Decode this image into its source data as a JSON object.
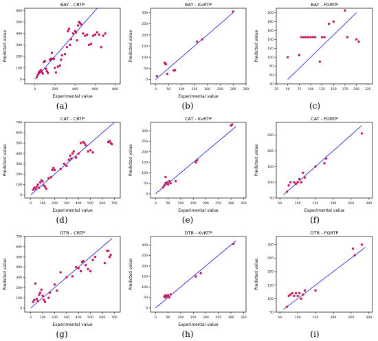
{
  "chart_data": [
    {
      "type": "scatter",
      "caption": "(a)",
      "title": "BAY - CRTP",
      "xlabel": "Experimental value",
      "ylabel": "Predicted value",
      "xlim": [
        -100,
        850
      ],
      "ylim": [
        -40,
        620
      ],
      "xticks": [
        0,
        200,
        400,
        600,
        800
      ],
      "yticks": [
        0,
        100,
        200,
        300,
        400,
        500,
        600
      ],
      "line": [
        [
          0,
          0
        ],
        [
          620,
          620
        ]
      ],
      "points": [
        [
          20,
          20
        ],
        [
          30,
          40
        ],
        [
          40,
          60
        ],
        [
          50,
          70
        ],
        [
          60,
          80
        ],
        [
          70,
          65
        ],
        [
          80,
          50
        ],
        [
          90,
          150
        ],
        [
          100,
          160
        ],
        [
          110,
          90
        ],
        [
          120,
          70
        ],
        [
          130,
          55
        ],
        [
          150,
          170
        ],
        [
          160,
          180
        ],
        [
          170,
          230
        ],
        [
          180,
          180
        ],
        [
          190,
          180
        ],
        [
          200,
          100
        ],
        [
          210,
          60
        ],
        [
          230,
          110
        ],
        [
          250,
          120
        ],
        [
          260,
          170
        ],
        [
          270,
          210
        ],
        [
          300,
          220
        ],
        [
          320,
          280
        ],
        [
          330,
          420
        ],
        [
          340,
          440
        ],
        [
          350,
          300
        ],
        [
          360,
          350
        ],
        [
          380,
          400
        ],
        [
          400,
          420
        ],
        [
          410,
          410
        ],
        [
          420,
          340
        ],
        [
          430,
          470
        ],
        [
          440,
          500
        ],
        [
          450,
          490
        ],
        [
          460,
          480
        ],
        [
          480,
          400
        ],
        [
          500,
          380
        ],
        [
          520,
          390
        ],
        [
          540,
          300
        ],
        [
          560,
          310
        ],
        [
          580,
          380
        ],
        [
          600,
          390
        ],
        [
          620,
          410
        ],
        [
          640,
          390
        ],
        [
          660,
          280
        ],
        [
          680,
          380
        ],
        [
          700,
          400
        ]
      ]
    },
    {
      "type": "scatter",
      "caption": "(b)",
      "title": "BAY - KvRTP",
      "xlabel": "Experimental value",
      "ylabel": "Predicted value",
      "xlim": [
        -20,
        350
      ],
      "ylim": [
        -20,
        320
      ],
      "xticks": [
        0,
        50,
        100,
        150,
        200,
        250,
        300,
        350
      ],
      "yticks": [
        0,
        50,
        100,
        150,
        200,
        250,
        300
      ],
      "line": [
        [
          0,
          0
        ],
        [
          300,
          300
        ]
      ],
      "points": [
        [
          5,
          15
        ],
        [
          35,
          75
        ],
        [
          38,
          70
        ],
        [
          40,
          68
        ],
        [
          45,
          25
        ],
        [
          70,
          40
        ],
        [
          75,
          42
        ],
        [
          160,
          170
        ],
        [
          180,
          180
        ],
        [
          300,
          305
        ]
      ]
    },
    {
      "type": "scatter",
      "caption": "(c)",
      "title": "BAY - FGRTP",
      "xlabel": "",
      "ylabel": "Predicted value",
      "xlim": [
        25,
        235
      ],
      "ylim": [
        40,
        210
      ],
      "xticks": [
        25,
        50,
        75,
        100,
        125,
        150,
        175,
        200,
        225
      ],
      "yticks": [
        40,
        60,
        80,
        100,
        120,
        140,
        160,
        180,
        200
      ],
      "line": [
        [
          50,
          50
        ],
        [
          200,
          200
        ]
      ],
      "points": [
        [
          50,
          100
        ],
        [
          75,
          105
        ],
        [
          80,
          145
        ],
        [
          85,
          145
        ],
        [
          90,
          145
        ],
        [
          95,
          145
        ],
        [
          100,
          145
        ],
        [
          105,
          145
        ],
        [
          110,
          145
        ],
        [
          120,
          90
        ],
        [
          125,
          145
        ],
        [
          130,
          145
        ],
        [
          140,
          175
        ],
        [
          150,
          180
        ],
        [
          175,
          205
        ],
        [
          180,
          145
        ],
        [
          200,
          140
        ],
        [
          205,
          135
        ]
      ]
    },
    {
      "type": "scatter",
      "caption": "(d)",
      "title": "CAT - CRTP",
      "xlabel": "Experimental value",
      "ylabel": "Predicted value",
      "xlim": [
        -50,
        750
      ],
      "ylim": [
        -30,
        700
      ],
      "xticks": [
        0,
        100,
        200,
        300,
        400,
        500,
        600,
        700
      ],
      "yticks": [
        0,
        100,
        200,
        300,
        400,
        500,
        600,
        700
      ],
      "line": [
        [
          0,
          0
        ],
        [
          700,
          700
        ]
      ],
      "points": [
        [
          20,
          50
        ],
        [
          30,
          70
        ],
        [
          40,
          60
        ],
        [
          50,
          80
        ],
        [
          60,
          100
        ],
        [
          70,
          70
        ],
        [
          80,
          120
        ],
        [
          90,
          140
        ],
        [
          100,
          130
        ],
        [
          110,
          90
        ],
        [
          120,
          80
        ],
        [
          130,
          60
        ],
        [
          150,
          160
        ],
        [
          170,
          170
        ],
        [
          180,
          240
        ],
        [
          190,
          260
        ],
        [
          200,
          240
        ],
        [
          250,
          250
        ],
        [
          280,
          300
        ],
        [
          300,
          280
        ],
        [
          320,
          340
        ],
        [
          330,
          380
        ],
        [
          340,
          350
        ],
        [
          350,
          400
        ],
        [
          360,
          420
        ],
        [
          380,
          360
        ],
        [
          400,
          400
        ],
        [
          420,
          500
        ],
        [
          440,
          510
        ],
        [
          450,
          500
        ],
        [
          460,
          480
        ],
        [
          480,
          420
        ],
        [
          500,
          430
        ],
        [
          520,
          410
        ],
        [
          650,
          510
        ],
        [
          660,
          520
        ],
        [
          670,
          500
        ],
        [
          680,
          490
        ]
      ]
    },
    {
      "type": "scatter",
      "caption": "(e)",
      "title": "CAT - KvRTP",
      "xlabel": "Experimental value",
      "ylabel": "Predicted value",
      "xlim": [
        -20,
        360
      ],
      "ylim": [
        -20,
        340
      ],
      "xticks": [
        0,
        50,
        100,
        150,
        200,
        250,
        300,
        350
      ],
      "yticks": [
        0,
        50,
        100,
        150,
        200,
        250,
        300
      ],
      "line": [
        [
          0,
          0
        ],
        [
          320,
          320
        ]
      ],
      "points": [
        [
          30,
          30
        ],
        [
          35,
          40
        ],
        [
          40,
          50
        ],
        [
          40,
          80
        ],
        [
          45,
          55
        ],
        [
          50,
          45
        ],
        [
          55,
          60
        ],
        [
          60,
          50
        ],
        [
          80,
          60
        ],
        [
          160,
          150
        ],
        [
          165,
          160
        ],
        [
          300,
          325
        ],
        [
          305,
          330
        ]
      ]
    },
    {
      "type": "scatter",
      "caption": "(f)",
      "title": "CAT - FGRTP",
      "xlabel": "Experimental value",
      "ylabel": "Predicted value",
      "xlim": [
        40,
        310
      ],
      "ylim": [
        50,
        290
      ],
      "xticks": [
        50,
        100,
        150,
        200,
        250,
        300
      ],
      "yticks": [
        50,
        100,
        150,
        200,
        250
      ],
      "line": [
        [
          60,
          60
        ],
        [
          280,
          280
        ]
      ],
      "points": [
        [
          70,
          70
        ],
        [
          75,
          90
        ],
        [
          80,
          100
        ],
        [
          90,
          100
        ],
        [
          95,
          95
        ],
        [
          100,
          100
        ],
        [
          105,
          110
        ],
        [
          110,
          100
        ],
        [
          115,
          130
        ],
        [
          120,
          115
        ],
        [
          150,
          150
        ],
        [
          175,
          160
        ],
        [
          180,
          175
        ],
        [
          280,
          255
        ]
      ]
    },
    {
      "type": "scatter",
      "caption": "(g)",
      "title": "DTR - CRTP",
      "xlabel": "Experimental value",
      "ylabel": "Predicted value",
      "xlim": [
        -50,
        750
      ],
      "ylim": [
        -40,
        700
      ],
      "xticks": [
        0,
        100,
        200,
        300,
        400,
        500,
        600,
        700
      ],
      "yticks": [
        0,
        100,
        200,
        300,
        400,
        500,
        600,
        700
      ],
      "line": [
        [
          0,
          0
        ],
        [
          680,
          680
        ]
      ],
      "points": [
        [
          20,
          60
        ],
        [
          30,
          80
        ],
        [
          40,
          240
        ],
        [
          50,
          90
        ],
        [
          60,
          70
        ],
        [
          70,
          130
        ],
        [
          80,
          150
        ],
        [
          90,
          180
        ],
        [
          100,
          120
        ],
        [
          110,
          80
        ],
        [
          120,
          60
        ],
        [
          150,
          100
        ],
        [
          160,
          150
        ],
        [
          200,
          230
        ],
        [
          220,
          170
        ],
        [
          250,
          350
        ],
        [
          300,
          300
        ],
        [
          350,
          310
        ],
        [
          380,
          400
        ],
        [
          400,
          390
        ],
        [
          420,
          360
        ],
        [
          430,
          450
        ],
        [
          440,
          460
        ],
        [
          460,
          420
        ],
        [
          480,
          380
        ],
        [
          500,
          360
        ],
        [
          520,
          470
        ],
        [
          540,
          500
        ],
        [
          620,
          440
        ],
        [
          640,
          560
        ],
        [
          650,
          560
        ],
        [
          660,
          500
        ],
        [
          670,
          520
        ]
      ]
    },
    {
      "type": "scatter",
      "caption": "(h)",
      "title": "DTR - KvRTP",
      "xlabel": "Experimental value",
      "ylabel": "Predicted value",
      "xlim": [
        -20,
        360
      ],
      "ylim": [
        -20,
        340
      ],
      "xticks": [
        0,
        50,
        100,
        150,
        200,
        250,
        300,
        350
      ],
      "yticks": [
        0,
        50,
        100,
        150,
        200,
        250,
        300
      ],
      "line": [
        [
          0,
          0
        ],
        [
          320,
          320
        ]
      ],
      "points": [
        [
          35,
          55
        ],
        [
          38,
          50
        ],
        [
          40,
          60
        ],
        [
          45,
          55
        ],
        [
          50,
          60
        ],
        [
          55,
          50
        ],
        [
          60,
          65
        ],
        [
          160,
          150
        ],
        [
          180,
          165
        ],
        [
          310,
          305
        ]
      ]
    },
    {
      "type": "scatter",
      "caption": "(i)",
      "title": "DTR - FGRTP",
      "xlabel": "",
      "ylabel": "Predicted value",
      "xlim": [
        40,
        310
      ],
      "ylim": [
        50,
        330
      ],
      "xticks": [
        50,
        100,
        150,
        200,
        250,
        300
      ],
      "yticks": [
        50,
        100,
        150,
        200,
        250,
        300
      ],
      "line": [
        [
          60,
          60
        ],
        [
          290,
          290
        ]
      ],
      "points": [
        [
          70,
          70
        ],
        [
          75,
          110
        ],
        [
          80,
          115
        ],
        [
          85,
          120
        ],
        [
          90,
          110
        ],
        [
          95,
          120
        ],
        [
          100,
          110
        ],
        [
          105,
          120
        ],
        [
          110,
          100
        ],
        [
          115,
          115
        ],
        [
          120,
          130
        ],
        [
          150,
          130
        ],
        [
          255,
          285
        ],
        [
          260,
          260
        ],
        [
          280,
          300
        ]
      ]
    }
  ],
  "colors": {
    "line": "#2b2bd6",
    "point": "#c8175a",
    "axis": "#000000"
  }
}
